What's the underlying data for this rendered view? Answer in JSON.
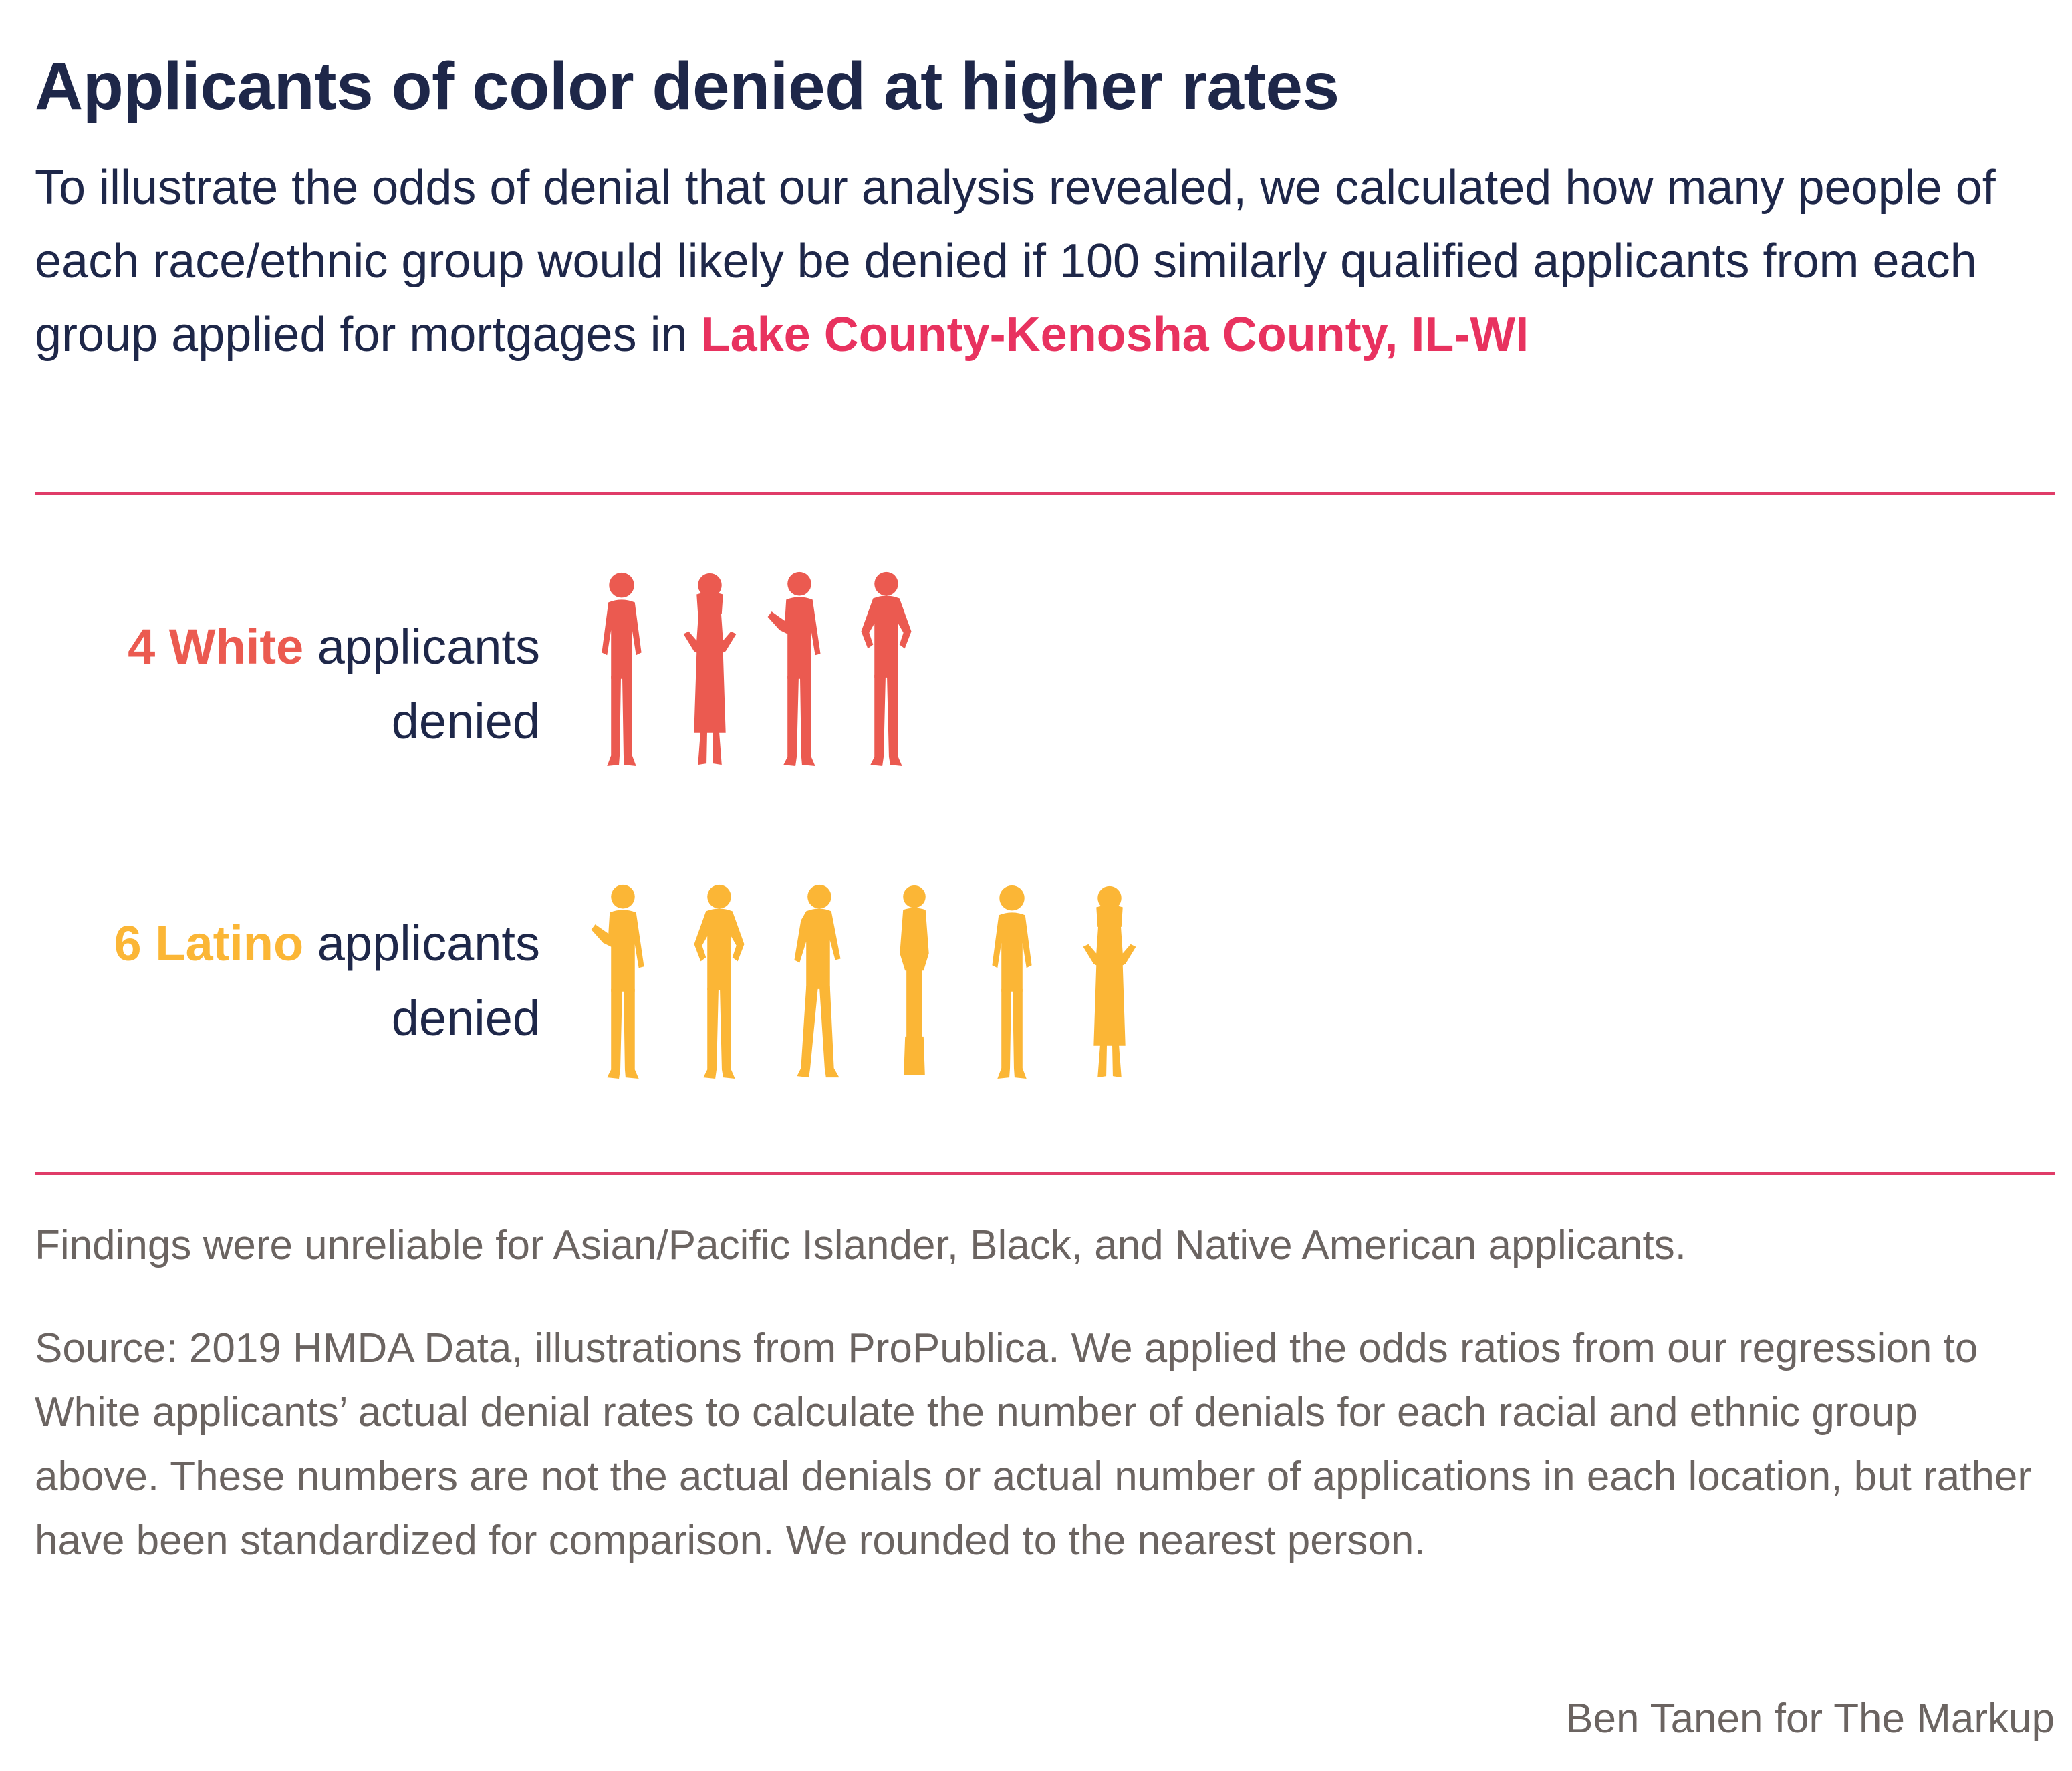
{
  "header": {
    "title": "Applicants of color denied at higher rates",
    "subtitle_text": "To illustrate the odds of denial that our analysis revealed, we calculated how many people of each race/ethnic group would likely be denied if 100 similarly qualified applicants from each group applied for mortgages in ",
    "location": "Lake County-Kenosha County, IL-WI"
  },
  "colors": {
    "white_group": "#eb5a50",
    "latino_group": "#fbb636",
    "accent": "#e8325f",
    "text_dark": "#1e2749",
    "text_muted": "#6b6461"
  },
  "chart_data": {
    "type": "pictogram",
    "unit": "denied applicants per 100 similarly qualified applicants",
    "series": [
      {
        "name": "White",
        "value": 4,
        "count_label": "4 White",
        "suffix": " applicants denied",
        "color": "#eb5a50"
      },
      {
        "name": "Latino",
        "value": 6,
        "count_label": "6 Latino",
        "suffix": " applicants denied",
        "color": "#fbb636"
      }
    ]
  },
  "footer": {
    "note": "Findings were unreliable for Asian/Pacific Islander, Black, and Native American applicants.",
    "source": "Source: 2019 HMDA Data, illustrations from ProPublica. We applied the odds ratios from our regression to White applicants’ actual denial rates to calculate the number of denials for each racial and ethnic group above. These numbers are not the actual denials or actual number of applications in each location, but rather have been standardized for comparison. We rounded to the nearest person.",
    "credit": "Ben Tanen for The Markup"
  }
}
